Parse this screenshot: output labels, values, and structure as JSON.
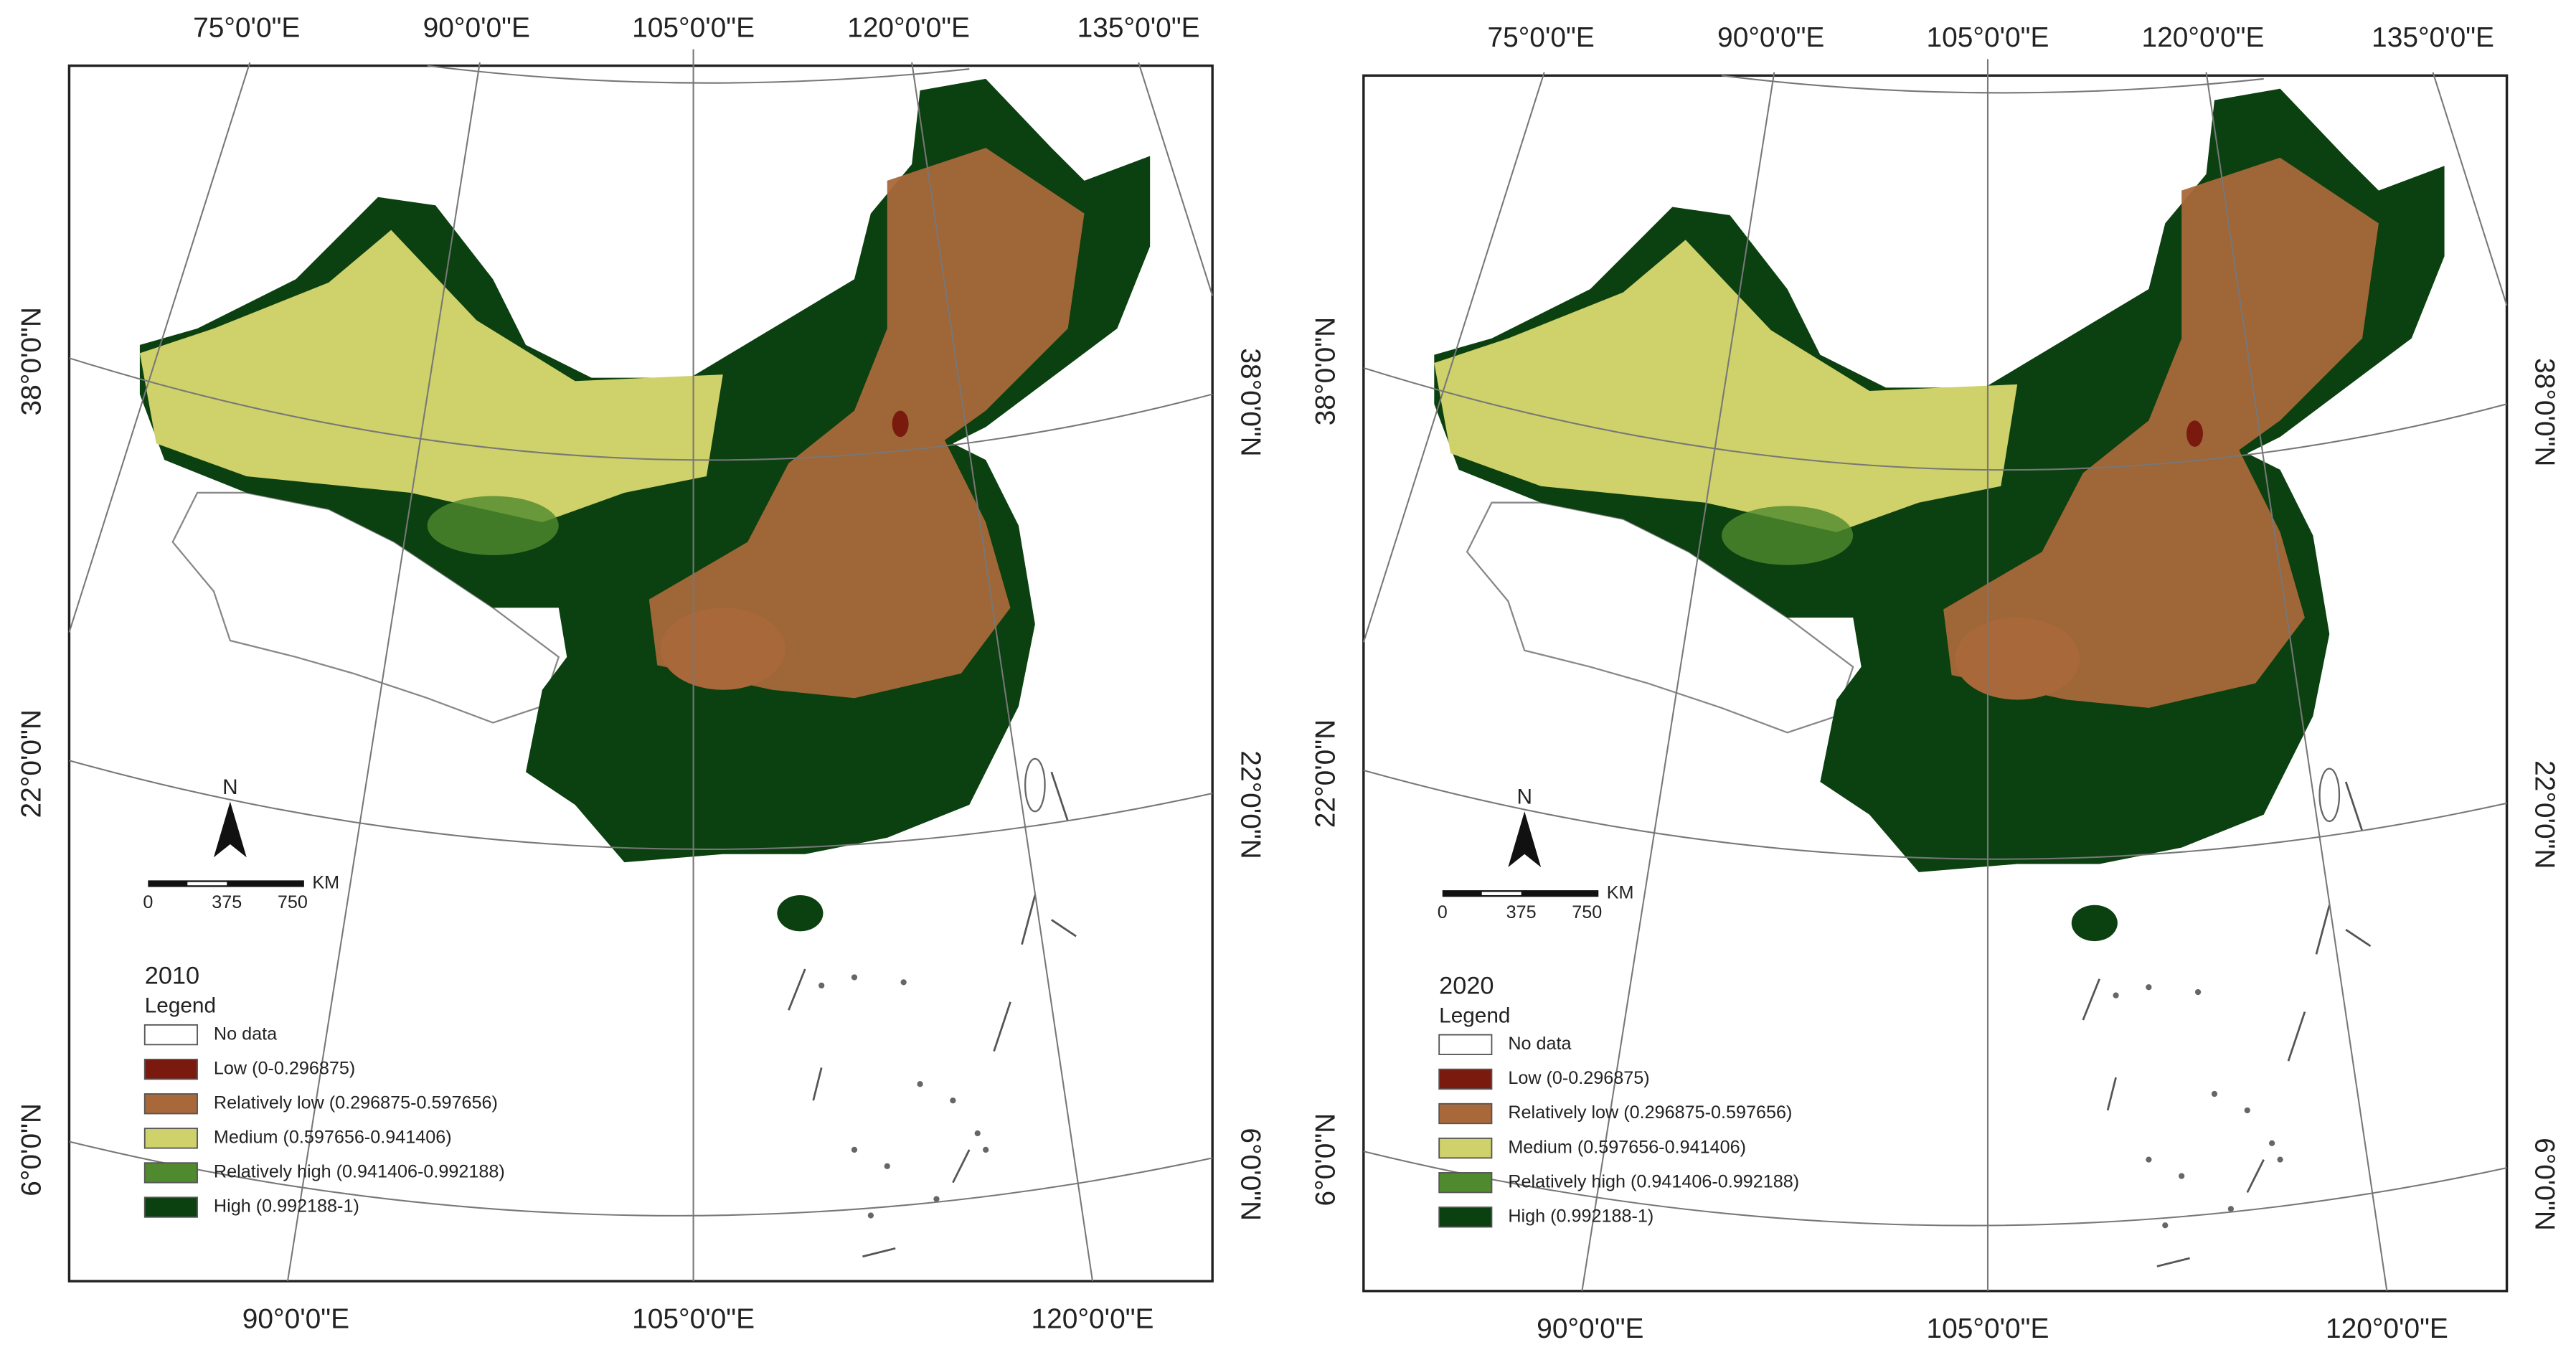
{
  "panels": [
    {
      "year": "2010",
      "legend_title": "Legend",
      "legend_items": [
        {
          "label": "No data",
          "color": "#ffffff"
        },
        {
          "label": "Low  (0-0.296875)",
          "color": "#7a1a0e"
        },
        {
          "label": "Relatively low  (0.296875-0.597656)",
          "color": "#a8683a"
        },
        {
          "label": "Medium  (0.597656-0.941406)",
          "color": "#cfd16a"
        },
        {
          "label": "Relatively high  (0.941406-0.992188)",
          "color": "#4f8a2e"
        },
        {
          "label": "High  (0.992188-1)",
          "color": "#0b4010"
        }
      ],
      "north": "N",
      "scale_labels": [
        "0",
        "375",
        "750"
      ],
      "scale_unit": "KM",
      "top_labels": [
        "75°0'0\"E",
        "90°0'0\"E",
        "105°0'0\"E",
        "120°0'0\"E",
        "135°0'0\"E"
      ],
      "bottom_labels": [
        "90°0'0\"E",
        "105°0'0\"E",
        "120°0'0\"E"
      ],
      "left_labels": [
        "38°0'0\"N",
        "22°0'0\"N",
        "6°0'0\"N"
      ],
      "right_labels": [
        "38°0'0\"N",
        "22°0'0\"N",
        "6°0'0\"N"
      ]
    },
    {
      "year": "2020",
      "legend_title": "Legend",
      "legend_items": [
        {
          "label": "No data",
          "color": "#ffffff"
        },
        {
          "label": "Low  (0-0.296875)",
          "color": "#7a1a0e"
        },
        {
          "label": "Relatively low  (0.296875-0.597656)",
          "color": "#a8683a"
        },
        {
          "label": "Medium  (0.597656-0.941406)",
          "color": "#cfd16a"
        },
        {
          "label": "Relatively high  (0.941406-0.992188)",
          "color": "#4f8a2e"
        },
        {
          "label": "High  (0.992188-1)",
          "color": "#0b4010"
        }
      ],
      "north": "N",
      "scale_labels": [
        "0",
        "375",
        "750"
      ],
      "scale_unit": "KM",
      "top_labels": [
        "75°0'0\"E",
        "90°0'0\"E",
        "105°0'0\"E",
        "120°0'0\"E",
        "135°0'0\"E"
      ],
      "bottom_labels": [
        "90°0'0\"E",
        "105°0'0\"E",
        "120°0'0\"E"
      ],
      "left_labels": [
        "38°0'0\"N",
        "22°0'0\"N",
        "6°0'0\"N"
      ],
      "right_labels": [
        "38°0'0\"N",
        "22°0'0\"N",
        "6°0'0\"N"
      ]
    }
  ]
}
